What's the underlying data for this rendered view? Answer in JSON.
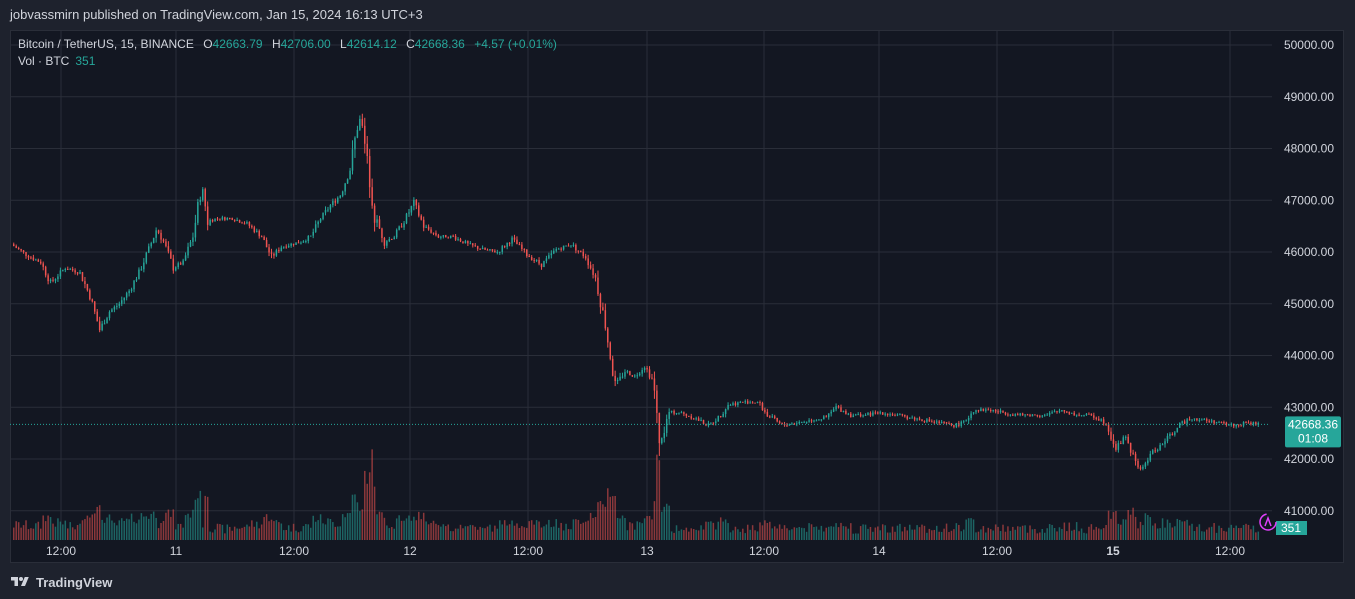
{
  "header": {
    "published_line": "jobvassmirn published on TradingView.com, Jan 15, 2024 16:13 UTC+3"
  },
  "legend": {
    "symbol": "Bitcoin / TetherUS, 15, BINANCE",
    "open_label": "O",
    "open_value": "42663.79",
    "high_label": "H",
    "high_value": "42706.00",
    "low_label": "L",
    "low_value": "42614.12",
    "close_label": "C",
    "close_value": "42668.36",
    "change": "+4.57 (+0.01%)",
    "volume_label": "Vol · BTC",
    "volume_value": "351"
  },
  "price_axis": {
    "ticks": [
      "50000.00",
      "49000.00",
      "48000.00",
      "47000.00",
      "46000.00",
      "45000.00",
      "44000.00",
      "43000.00",
      "42000.00",
      "41000.00"
    ],
    "last_price": "42668.36",
    "countdown": "01:08",
    "last_volume": "351"
  },
  "time_axis": {
    "ticks": [
      "12:00",
      "11",
      "12:00",
      "12",
      "12:00",
      "13",
      "12:00",
      "14",
      "12:00",
      "15",
      "12:00"
    ]
  },
  "footer": {
    "brand": "TradingView"
  },
  "colors": {
    "up": "#26a69a",
    "down": "#ef5350",
    "background": "#131722",
    "grid": "#2a2e39",
    "text": "#d1d4dc"
  },
  "chart_data": {
    "type": "candlestick",
    "symbol": "BTCUSDT",
    "interval": "15",
    "ylim": [
      40300,
      50500
    ],
    "x_ticks": [
      "12:00",
      "11",
      "12:00",
      "12",
      "12:00",
      "13",
      "12:00",
      "14",
      "12:00",
      "15",
      "12:00"
    ],
    "price_path": [
      [
        0,
        46150
      ],
      [
        1.5,
        45950
      ],
      [
        3,
        45800
      ],
      [
        4,
        45400
      ],
      [
        5.5,
        45700
      ],
      [
        7,
        45600
      ],
      [
        8,
        45150
      ],
      [
        9,
        44500
      ],
      [
        10,
        44850
      ],
      [
        11,
        45000
      ],
      [
        12,
        45250
      ],
      [
        13,
        45600
      ],
      [
        14,
        46050
      ],
      [
        14.8,
        46450
      ],
      [
        15.5,
        46200
      ],
      [
        16.5,
        45700
      ],
      [
        17.5,
        45800
      ],
      [
        18.5,
        46300
      ],
      [
        19.4,
        47300
      ],
      [
        20,
        46600
      ],
      [
        21,
        46650
      ],
      [
        22.5,
        46650
      ],
      [
        24,
        46550
      ],
      [
        25.5,
        46300
      ],
      [
        26.5,
        45900
      ],
      [
        27.5,
        46100
      ],
      [
        28.5,
        46150
      ],
      [
        29.5,
        46200
      ],
      [
        30.5,
        46300
      ],
      [
        31.5,
        46650
      ],
      [
        32.5,
        46900
      ],
      [
        33.5,
        47100
      ],
      [
        34.5,
        47600
      ],
      [
        35.2,
        48400
      ],
      [
        35.6,
        48600
      ],
      [
        36.2,
        47800
      ],
      [
        37,
        46700
      ],
      [
        38,
        46200
      ],
      [
        39,
        46300
      ],
      [
        40,
        46600
      ],
      [
        41,
        46950
      ],
      [
        42,
        46500
      ],
      [
        43.5,
        46300
      ],
      [
        45,
        46300
      ],
      [
        46.5,
        46150
      ],
      [
        48,
        46050
      ],
      [
        49.5,
        46000
      ],
      [
        51,
        46250
      ],
      [
        52.5,
        45950
      ],
      [
        54,
        45750
      ],
      [
        55.5,
        46050
      ],
      [
        57,
        46150
      ],
      [
        58.5,
        45900
      ],
      [
        59.5,
        45500
      ],
      [
        60.5,
        44600
      ],
      [
        61.5,
        43400
      ],
      [
        62.5,
        43700
      ],
      [
        63.5,
        43600
      ],
      [
        64.5,
        43800
      ],
      [
        65.4,
        43500
      ],
      [
        66,
        42200
      ],
      [
        67,
        42900
      ],
      [
        68,
        42900
      ],
      [
        69.5,
        42800
      ],
      [
        71,
        42650
      ],
      [
        72,
        42800
      ],
      [
        73,
        43050
      ],
      [
        74.5,
        43100
      ],
      [
        76,
        43100
      ],
      [
        77,
        42850
      ],
      [
        78.5,
        42650
      ],
      [
        80,
        42700
      ],
      [
        81.5,
        42750
      ],
      [
        83,
        42800
      ],
      [
        84,
        43000
      ],
      [
        85.5,
        42850
      ],
      [
        87,
        42850
      ],
      [
        88.5,
        42900
      ],
      [
        90,
        42850
      ],
      [
        91.5,
        42800
      ],
      [
        93,
        42750
      ],
      [
        94.5,
        42700
      ],
      [
        96,
        42650
      ],
      [
        97,
        42700
      ],
      [
        98,
        42950
      ],
      [
        99.5,
        42950
      ],
      [
        101,
        42900
      ],
      [
        102.5,
        42850
      ],
      [
        104,
        42850
      ],
      [
        105.5,
        42850
      ],
      [
        107,
        42950
      ],
      [
        108.5,
        42850
      ],
      [
        110,
        42850
      ],
      [
        111.5,
        42700
      ],
      [
        112.5,
        42200
      ],
      [
        113.5,
        42450
      ],
      [
        114.5,
        41900
      ],
      [
        115.2,
        41800
      ],
      [
        116,
        42100
      ],
      [
        117,
        42250
      ],
      [
        118,
        42450
      ],
      [
        119,
        42650
      ],
      [
        120,
        42800
      ],
      [
        121.5,
        42750
      ],
      [
        123,
        42700
      ],
      [
        124.5,
        42650
      ],
      [
        126,
        42700
      ],
      [
        127,
        42668
      ]
    ],
    "volume_baseline_btc": 351,
    "last_close": 42668.36
  }
}
